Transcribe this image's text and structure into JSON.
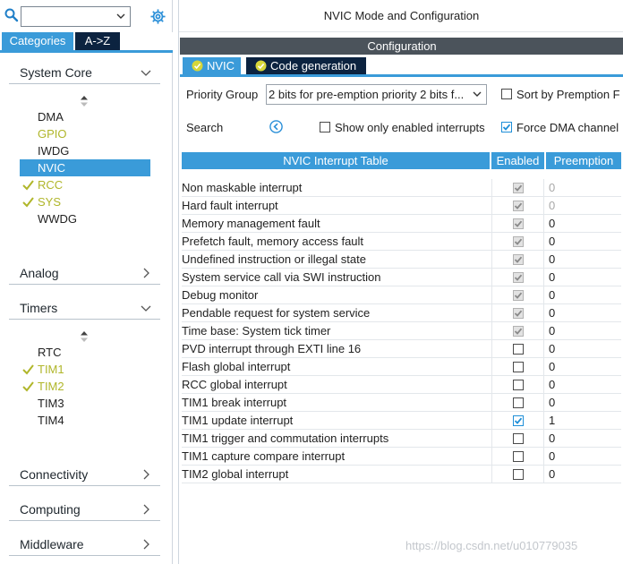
{
  "left": {
    "search_value": "",
    "tabs": {
      "categories": "Categories",
      "az": "A->Z"
    },
    "categories": {
      "system_core": "System Core",
      "analog": "Analog",
      "timers": "Timers",
      "connectivity": "Connectivity",
      "computing": "Computing",
      "middleware": "Middleware"
    },
    "system_core_items": [
      {
        "label": "DMA",
        "state": "normal"
      },
      {
        "label": "GPIO",
        "state": "configured"
      },
      {
        "label": "IWDG",
        "state": "normal"
      },
      {
        "label": "NVIC",
        "state": "selected"
      },
      {
        "label": "RCC",
        "state": "checked"
      },
      {
        "label": "SYS",
        "state": "checked"
      },
      {
        "label": "WWDG",
        "state": "normal"
      }
    ],
    "timer_items": [
      {
        "label": "RTC",
        "state": "normal"
      },
      {
        "label": "TIM1",
        "state": "checked"
      },
      {
        "label": "TIM2",
        "state": "checked"
      },
      {
        "label": "TIM3",
        "state": "normal"
      },
      {
        "label": "TIM4",
        "state": "normal"
      }
    ]
  },
  "right": {
    "title": "NVIC Mode and Configuration",
    "configuration": "Configuration",
    "subtabs": {
      "nvic": "NVIC",
      "code": "Code generation"
    },
    "priority_group": {
      "label": "Priority Group",
      "value": "2 bits for pre-emption priority 2 bits f..."
    },
    "sort_by_preemption": {
      "label": "Sort by Premption F",
      "checked": false
    },
    "search_label": "Search",
    "show_only_enabled": {
      "label": "Show only enabled interrupts",
      "checked": false
    },
    "force_dma": {
      "label": "Force DMA channel",
      "checked": true
    },
    "table": {
      "headers": {
        "name": "NVIC Interrupt Table",
        "enabled": "Enabled",
        "preemption": "Preemption"
      },
      "rows": [
        {
          "name": "Non maskable interrupt",
          "enabled": true,
          "locked": true,
          "preemption": "0"
        },
        {
          "name": "Hard fault interrupt",
          "enabled": true,
          "locked": true,
          "preemption": "0"
        },
        {
          "name": "Memory management fault",
          "enabled": true,
          "locked": true,
          "preemption": "0"
        },
        {
          "name": "Prefetch fault, memory access fault",
          "enabled": true,
          "locked": true,
          "preemption": "0"
        },
        {
          "name": "Undefined instruction or illegal state",
          "enabled": true,
          "locked": true,
          "preemption": "0"
        },
        {
          "name": "System service call via SWI instruction",
          "enabled": true,
          "locked": true,
          "preemption": "0"
        },
        {
          "name": "Debug monitor",
          "enabled": true,
          "locked": true,
          "preemption": "0"
        },
        {
          "name": "Pendable request for system service",
          "enabled": true,
          "locked": true,
          "preemption": "0"
        },
        {
          "name": "Time base: System tick timer",
          "enabled": true,
          "locked": true,
          "preemption": "0"
        },
        {
          "name": "PVD interrupt through EXTI line 16",
          "enabled": false,
          "locked": false,
          "preemption": "0"
        },
        {
          "name": "Flash global interrupt",
          "enabled": false,
          "locked": false,
          "preemption": "0"
        },
        {
          "name": "RCC global interrupt",
          "enabled": false,
          "locked": false,
          "preemption": "0"
        },
        {
          "name": "TIM1 break interrupt",
          "enabled": false,
          "locked": false,
          "preemption": "0"
        },
        {
          "name": "TIM1 update interrupt",
          "enabled": true,
          "locked": false,
          "preemption": "1"
        },
        {
          "name": "TIM1 trigger and commutation interrupts",
          "enabled": false,
          "locked": false,
          "preemption": "0"
        },
        {
          "name": "TIM1 capture compare interrupt",
          "enabled": false,
          "locked": false,
          "preemption": "0"
        },
        {
          "name": "TIM2 global interrupt",
          "enabled": false,
          "locked": false,
          "preemption": "0"
        }
      ]
    }
  },
  "watermark": "https://blog.csdn.net/u010779035",
  "colors": {
    "accent": "#3a9bd9",
    "navy": "#0c2340",
    "configured": "#b0b62a",
    "header_dark": "#4b535b"
  }
}
